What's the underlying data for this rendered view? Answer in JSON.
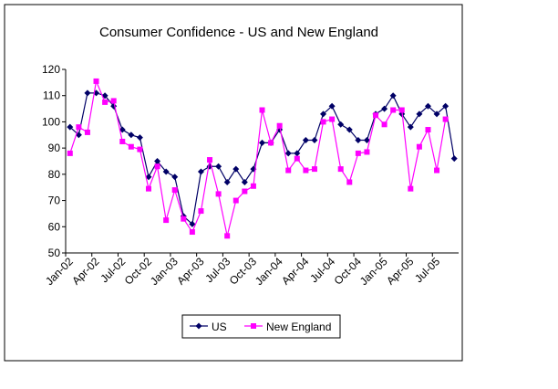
{
  "chart_data": {
    "type": "line",
    "title": "Consumer Confidence - US and New England",
    "categories": [
      "Jan-02",
      null,
      null,
      "Apr-02",
      null,
      null,
      "Jul-02",
      null,
      null,
      "Oct-02",
      null,
      null,
      "Jan-03",
      null,
      null,
      "Apr-03",
      null,
      null,
      "Jul-03",
      null,
      null,
      "Oct-03",
      null,
      null,
      "Jan-04",
      null,
      null,
      "Apr-04",
      null,
      null,
      "Jul-04",
      null,
      null,
      "Oct-04",
      null,
      null,
      "Jan-05",
      null,
      null,
      "Apr-05",
      null,
      null,
      "Jul-05",
      null,
      null
    ],
    "series": [
      {
        "name": "US",
        "color": "#000066",
        "values": [
          98,
          95,
          111,
          111,
          110,
          106,
          97,
          95,
          94,
          79,
          85,
          81,
          79,
          64,
          61,
          81,
          83,
          83,
          77,
          82,
          77,
          82,
          92,
          92,
          97,
          88,
          88,
          93,
          93,
          103,
          106,
          99,
          97,
          93,
          93,
          103,
          105,
          110,
          103,
          98,
          103,
          106,
          103,
          106,
          86
        ]
      },
      {
        "name": "New England",
        "color": "#ff00ff",
        "values": [
          88,
          98,
          96,
          115.5,
          107.5,
          108,
          92.5,
          90.5,
          89.5,
          74.5,
          83,
          62.5,
          74,
          63,
          58,
          66,
          85.5,
          72.5,
          56.5,
          70,
          73.5,
          75.5,
          104.5,
          92,
          98.5,
          81.5,
          86,
          81.5,
          82,
          100,
          101,
          82,
          77,
          88,
          88.5,
          102.5,
          99,
          104.5,
          104.5,
          74.5,
          90.5,
          97,
          81.5,
          101,
          null
        ]
      }
    ],
    "ylim": [
      50,
      120
    ],
    "yticks": [
      50,
      60,
      70,
      80,
      90,
      100,
      110,
      120
    ],
    "grid": false,
    "legend": "bottom"
  }
}
